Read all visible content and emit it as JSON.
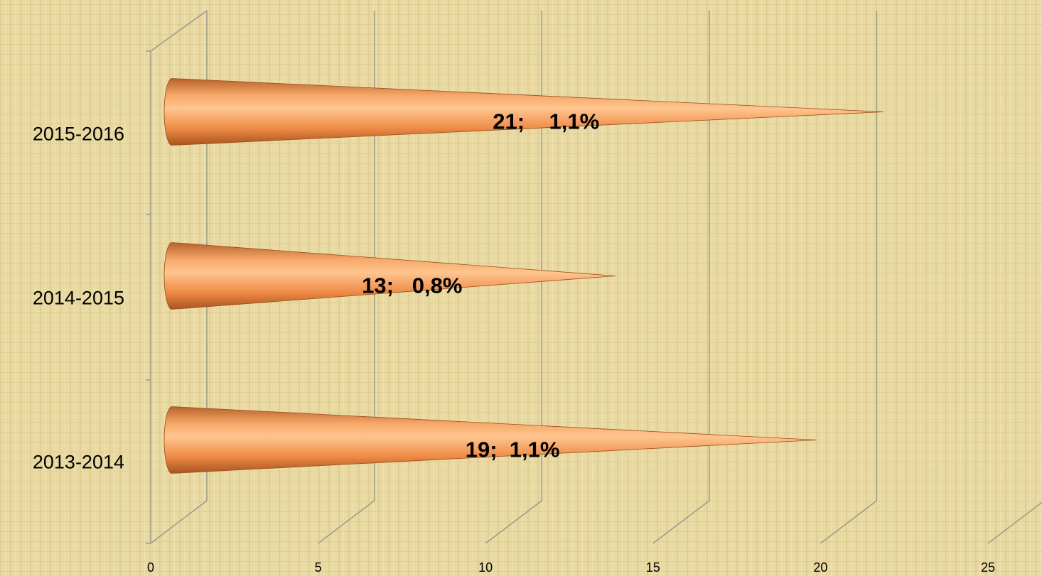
{
  "chart_data": {
    "type": "bar3d-cone",
    "orientation": "horizontal",
    "categories": [
      "2013-2014",
      "2014-2015",
      "2015-2016"
    ],
    "values": [
      19,
      13,
      21
    ],
    "value_labels": [
      "19;  1,1%",
      "13;   0,8%",
      "21;    1,1%"
    ],
    "color": "#f29a50",
    "xlim": [
      0,
      25
    ],
    "xticks": [
      0,
      5,
      10,
      15,
      20,
      25
    ],
    "grid": true
  }
}
